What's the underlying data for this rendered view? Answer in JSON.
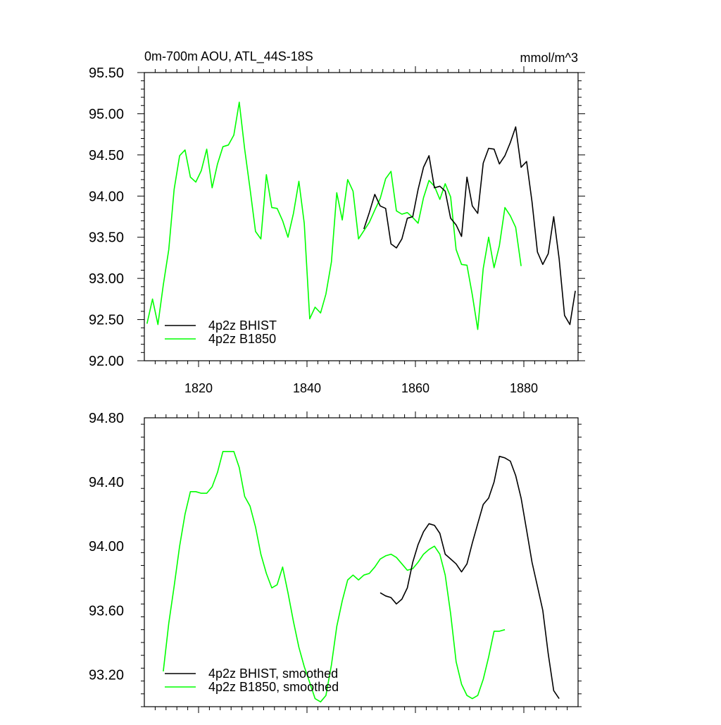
{
  "chart_data": [
    {
      "type": "line",
      "title": "0m-700m AOU, ATL_44S-18S",
      "units": "mmol/m^3",
      "xlim": [
        1810,
        1890
      ],
      "ylim": [
        92.0,
        95.5
      ],
      "xticks": [
        1820,
        1840,
        1860,
        1880
      ],
      "xtick_labels": [
        "1820",
        "1840",
        "1860",
        "1880"
      ],
      "yticks": [
        92.0,
        92.5,
        93.0,
        93.5,
        94.0,
        94.5,
        95.0,
        95.5
      ],
      "ytick_labels": [
        "92.00",
        "92.50",
        "93.00",
        "93.50",
        "94.00",
        "94.50",
        "95.00",
        "95.50"
      ],
      "legend_position": "bottom-left",
      "series": [
        {
          "name": "4p2z BHIST",
          "color": "#000000",
          "x": [
            1850.5,
            1851.5,
            1852.5,
            1853.5,
            1854.5,
            1855.5,
            1856.5,
            1857.5,
            1858.5,
            1859.5,
            1860.5,
            1861.5,
            1862.5,
            1863.5,
            1864.5,
            1865.5,
            1866.5,
            1867.5,
            1868.5,
            1869.5,
            1870.5,
            1871.5,
            1872.5,
            1873.5,
            1874.5,
            1875.5,
            1876.5,
            1877.5,
            1878.5,
            1879.5,
            1880.5,
            1881.5,
            1882.5,
            1883.5,
            1884.5,
            1885.5,
            1886.5,
            1887.5,
            1888.5,
            1889.5
          ],
          "y": [
            93.6,
            93.8,
            94.02,
            93.88,
            93.85,
            93.42,
            93.37,
            93.48,
            93.73,
            93.75,
            94.08,
            94.35,
            94.49,
            94.1,
            94.12,
            94.06,
            93.73,
            93.65,
            93.51,
            94.23,
            93.88,
            93.79,
            94.4,
            94.58,
            94.57,
            94.39,
            94.49,
            94.65,
            94.84,
            94.35,
            94.42,
            93.93,
            93.32,
            93.17,
            93.3,
            93.75,
            93.24,
            92.55,
            92.44,
            92.85
          ]
        },
        {
          "name": "4p2z B1850",
          "color": "#00ff00",
          "x": [
            1810.5,
            1811.5,
            1812.5,
            1813.5,
            1814.5,
            1815.5,
            1816.5,
            1817.5,
            1818.5,
            1819.5,
            1820.5,
            1821.5,
            1822.5,
            1823.5,
            1824.5,
            1825.5,
            1826.5,
            1827.5,
            1828.5,
            1829.5,
            1830.5,
            1831.5,
            1832.5,
            1833.5,
            1834.5,
            1835.5,
            1836.5,
            1837.5,
            1838.5,
            1839.5,
            1840.5,
            1841.5,
            1842.5,
            1843.5,
            1844.5,
            1845.5,
            1846.5,
            1847.5,
            1848.5,
            1849.5,
            1850.5,
            1851.5,
            1852.5,
            1853.5,
            1854.5,
            1855.5,
            1856.5,
            1857.5,
            1858.5,
            1859.5,
            1860.5,
            1861.5,
            1862.5,
            1863.5,
            1864.5,
            1865.5,
            1866.5,
            1867.5,
            1868.5,
            1869.5,
            1870.5,
            1871.5,
            1872.5,
            1873.5,
            1874.5,
            1875.5,
            1876.5,
            1877.5,
            1878.5,
            1879.5
          ],
          "y": [
            92.45,
            92.75,
            92.44,
            92.92,
            93.35,
            94.08,
            94.49,
            94.56,
            94.23,
            94.17,
            94.31,
            94.57,
            94.1,
            94.39,
            94.6,
            94.62,
            94.74,
            95.14,
            94.57,
            94.09,
            93.57,
            93.48,
            94.26,
            93.86,
            93.85,
            93.7,
            93.5,
            93.79,
            94.18,
            93.67,
            92.51,
            92.65,
            92.58,
            92.81,
            93.2,
            94.04,
            93.71,
            94.2,
            94.06,
            93.48,
            93.58,
            93.68,
            93.83,
            93.97,
            94.21,
            94.3,
            93.82,
            93.78,
            93.8,
            93.74,
            93.67,
            93.98,
            94.19,
            94.12,
            93.96,
            94.15,
            93.99,
            93.35,
            93.17,
            93.16,
            92.8,
            92.38,
            93.12,
            93.5,
            93.13,
            93.4,
            93.86,
            93.76,
            93.62,
            93.15
          ]
        }
      ]
    },
    {
      "type": "line",
      "xlim": [
        1810,
        1890
      ],
      "ylim": [
        93.0,
        94.8
      ],
      "xticks": [
        1820,
        1840,
        1860,
        1880
      ],
      "yticks": [
        93.2,
        93.6,
        94.0,
        94.4,
        94.8
      ],
      "ytick_labels": [
        "93.20",
        "93.60",
        "94.00",
        "94.40",
        "94.80"
      ],
      "legend_position": "bottom-left",
      "series": [
        {
          "name": "4p2z BHIST, smoothed",
          "color": "#000000",
          "x": [
            1853.5,
            1854.5,
            1855.5,
            1856.5,
            1857.5,
            1858.5,
            1859.5,
            1860.5,
            1861.5,
            1862.5,
            1863.5,
            1864.5,
            1865.5,
            1866.5,
            1867.5,
            1868.5,
            1869.5,
            1870.5,
            1871.5,
            1872.5,
            1873.5,
            1874.5,
            1875.5,
            1876.5,
            1877.5,
            1878.5,
            1879.5,
            1880.5,
            1881.5,
            1882.5,
            1883.5,
            1884.5,
            1885.5,
            1886.5
          ],
          "y": [
            93.71,
            93.69,
            93.68,
            93.64,
            93.67,
            93.74,
            93.9,
            94.01,
            94.09,
            94.14,
            94.13,
            94.08,
            93.95,
            93.92,
            93.89,
            93.84,
            93.89,
            94.02,
            94.14,
            94.26,
            94.3,
            94.4,
            94.56,
            94.55,
            94.53,
            94.44,
            94.3,
            94.1,
            93.9,
            93.75,
            93.6,
            93.33,
            93.1,
            93.05
          ]
        },
        {
          "name": "4p2z B1850, smoothed",
          "color": "#00ff00",
          "x": [
            1813.5,
            1814.5,
            1815.5,
            1816.5,
            1817.5,
            1818.5,
            1819.5,
            1820.5,
            1821.5,
            1822.5,
            1823.5,
            1824.5,
            1825.5,
            1826.5,
            1827.5,
            1828.5,
            1829.5,
            1830.5,
            1831.5,
            1832.5,
            1833.5,
            1834.5,
            1835.5,
            1836.5,
            1837.5,
            1838.5,
            1839.5,
            1840.5,
            1841.5,
            1842.5,
            1843.5,
            1844.5,
            1845.5,
            1846.5,
            1847.5,
            1848.5,
            1849.5,
            1850.5,
            1851.5,
            1852.5,
            1853.5,
            1854.5,
            1855.5,
            1856.5,
            1857.5,
            1858.5,
            1859.5,
            1860.5,
            1861.5,
            1862.5,
            1863.5,
            1864.5,
            1865.5,
            1866.5,
            1867.5,
            1868.5,
            1869.5,
            1870.5,
            1871.5,
            1872.5,
            1873.5,
            1874.5,
            1875.5,
            1876.5
          ],
          "y": [
            93.22,
            93.52,
            93.75,
            94.0,
            94.2,
            94.34,
            94.34,
            94.33,
            94.33,
            94.37,
            94.46,
            94.59,
            94.59,
            94.59,
            94.49,
            94.31,
            94.25,
            94.12,
            93.95,
            93.83,
            93.74,
            93.76,
            93.87,
            93.71,
            93.53,
            93.37,
            93.25,
            93.15,
            93.05,
            93.03,
            93.07,
            93.26,
            93.5,
            93.66,
            93.79,
            93.82,
            93.79,
            93.82,
            93.83,
            93.87,
            93.92,
            93.94,
            93.95,
            93.93,
            93.89,
            93.85,
            93.86,
            93.9,
            93.95,
            93.98,
            94.0,
            93.95,
            93.82,
            93.58,
            93.28,
            93.14,
            93.07,
            93.05,
            93.07,
            93.17,
            93.31,
            93.47,
            93.47,
            93.48
          ]
        }
      ]
    }
  ]
}
